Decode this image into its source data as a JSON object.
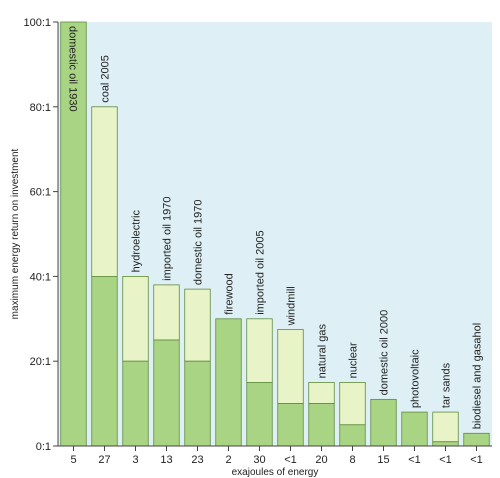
{
  "chart_data": {
    "type": "bar",
    "title": "",
    "xlabel": "exajoules of energy",
    "ylabel": "maximum energy return on investment",
    "ylim": [
      0,
      100
    ],
    "yticks": [
      "0:1",
      "20:1",
      "40:1",
      "60:1",
      "80:1",
      "100:1"
    ],
    "ytick_values": [
      0,
      20,
      40,
      60,
      80,
      100
    ],
    "grid": false,
    "legend": "none",
    "colors": {
      "plot_background": "#def0f6",
      "bar_dark": "#a9d484",
      "bar_light": "#e8f4c8",
      "bar_stroke": "#5e8a3a"
    },
    "categories": [
      "domestic oil 1930",
      "coal 2005",
      "hydroelectric",
      "imported oil 1970",
      "domestic oil 1970",
      "firewood",
      "imported oil 2005",
      "windmill",
      "natural gas",
      "nuclear",
      "domestic oil 2000",
      "photovoltaic",
      "tar sands",
      "biodiesel and gasahol"
    ],
    "exajoules": [
      "5",
      "27",
      "3",
      "13",
      "23",
      "2",
      "30",
      "<1",
      "20",
      "8",
      "15",
      "<1",
      "<1",
      "<1"
    ],
    "series": [
      {
        "values": [
          100,
          40,
          20,
          25,
          20,
          30,
          15,
          10,
          10,
          5,
          11,
          8,
          1,
          3
        ]
      },
      {
        "values": [
          100,
          80,
          40,
          38,
          37,
          30,
          30,
          27.5,
          15,
          15,
          11,
          8,
          8,
          3
        ]
      }
    ]
  }
}
